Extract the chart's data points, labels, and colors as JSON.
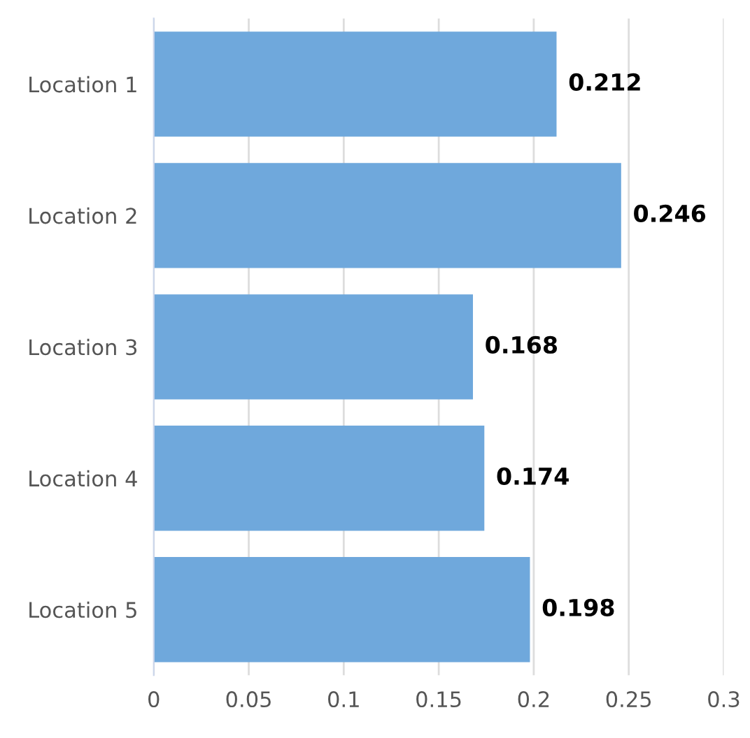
{
  "chart_data": {
    "type": "bar",
    "orientation": "horizontal",
    "categories": [
      "Location 1",
      "Location 2",
      "Location 3",
      "Location 4",
      "Location 5"
    ],
    "values": [
      0.212,
      0.246,
      0.168,
      0.174,
      0.198
    ],
    "color": "#6fa8dc",
    "xlim": [
      0,
      0.3
    ],
    "xticks": [
      0,
      0.05,
      0.1,
      0.15,
      0.2,
      0.25,
      0.3
    ],
    "grid": "x",
    "data_labels": true
  }
}
